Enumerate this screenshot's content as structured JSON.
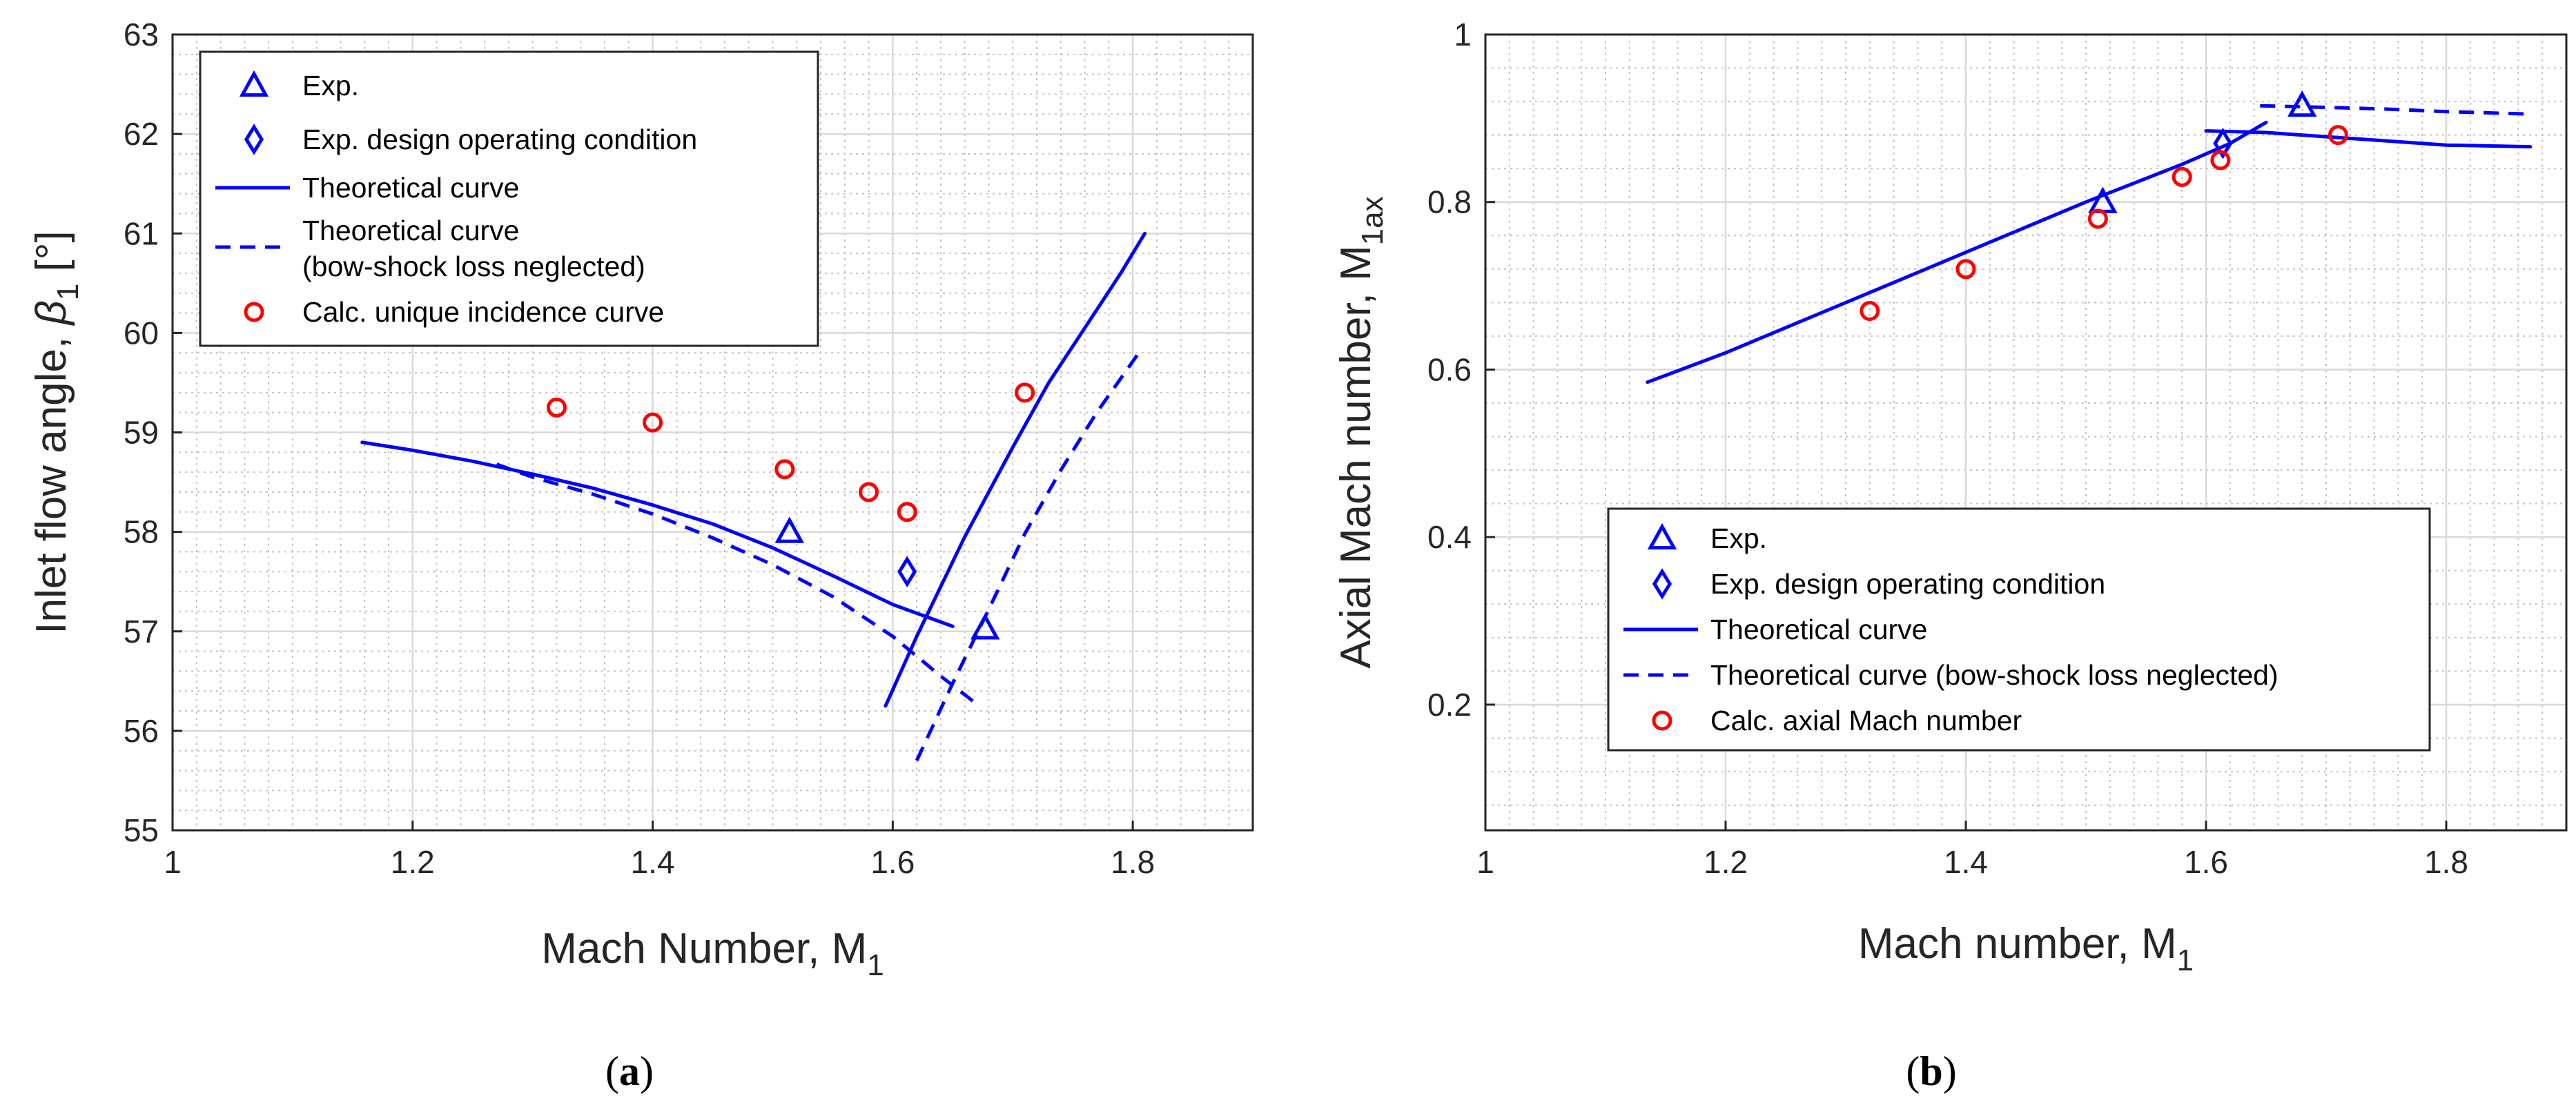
{
  "chart_data": [
    {
      "type": "line",
      "caption_letter": "a",
      "xlabel": "Mach Number, M",
      "xlabel_sub": "1",
      "ylabel": "Inlet flow angle, ",
      "ylabel_symbol": "β",
      "ylabel_sub": "1",
      "ylabel_unit": " [°]",
      "xlim": [
        1,
        1.9
      ],
      "ylim": [
        55,
        63
      ],
      "xticks": [
        1,
        1.2,
        1.4,
        1.6,
        1.8
      ],
      "xtick_labels": [
        "1",
        "1.2",
        "1.4",
        "1.6",
        "1.8"
      ],
      "yticks": [
        55,
        56,
        57,
        58,
        59,
        60,
        61,
        62,
        63
      ],
      "ytick_labels": [
        "55",
        "56",
        "57",
        "58",
        "59",
        "60",
        "61",
        "62",
        "63"
      ],
      "legend_position": "top-left",
      "series": [
        {
          "name": "Exp.",
          "kind": "triangle",
          "color": "#0000ff",
          "x": [
            1.514,
            1.677
          ],
          "y": [
            58.0,
            57.03
          ]
        },
        {
          "name": "Exp. design operating condition",
          "kind": "diamond",
          "color": "#0000ff",
          "x": [
            1.612
          ],
          "y": [
            57.6
          ]
        },
        {
          "name": "Theoretical curve",
          "kind": "solid",
          "color": "#0000ff",
          "segments": [
            {
              "x": [
                1.158,
                1.2,
                1.25,
                1.3,
                1.35,
                1.4,
                1.45,
                1.5,
                1.55,
                1.6,
                1.65
              ],
              "y": [
                58.9,
                58.82,
                58.71,
                58.58,
                58.44,
                58.27,
                58.08,
                57.84,
                57.56,
                57.27,
                57.05
              ]
            },
            {
              "x": [
                1.594,
                1.62,
                1.66,
                1.7,
                1.73,
                1.76,
                1.79,
                1.81
              ],
              "y": [
                56.25,
                56.95,
                57.95,
                58.85,
                59.5,
                60.05,
                60.6,
                61.0
              ]
            }
          ]
        },
        {
          "name": "Theoretical curve",
          "name_line2": "(bow-shock loss neglected)",
          "kind": "dashed",
          "color": "#0000ff",
          "segments": [
            {
              "x": [
                1.27,
                1.3,
                1.35,
                1.4,
                1.45,
                1.5,
                1.55,
                1.6,
                1.64,
                1.672
              ],
              "y": [
                58.68,
                58.55,
                58.38,
                58.18,
                57.94,
                57.67,
                57.35,
                56.95,
                56.55,
                56.25
              ]
            },
            {
              "x": [
                1.62,
                1.65,
                1.68,
                1.71,
                1.74,
                1.77,
                1.808
              ],
              "y": [
                55.7,
                56.48,
                57.22,
                57.98,
                58.62,
                59.2,
                59.85
              ]
            }
          ]
        },
        {
          "name": "Calc. unique incidence curve",
          "kind": "circle",
          "color": "#ff0000",
          "x": [
            1.32,
            1.4,
            1.51,
            1.58,
            1.612,
            1.71
          ],
          "y": [
            59.25,
            59.1,
            58.63,
            58.4,
            58.2,
            59.4
          ]
        }
      ]
    },
    {
      "type": "line",
      "caption_letter": "b",
      "xlabel": "Mach number, M",
      "xlabel_sub": "1",
      "ylabel": "Axial Mach number, M",
      "ylabel_sub": "1ax",
      "xlim": [
        1,
        1.9
      ],
      "ylim": [
        0.05,
        1.0
      ],
      "xticks": [
        1,
        1.2,
        1.4,
        1.6,
        1.8
      ],
      "xtick_labels": [
        "1",
        "1.2",
        "1.4",
        "1.6",
        "1.8"
      ],
      "yticks": [
        0.2,
        0.4,
        0.6,
        0.8,
        1.0
      ],
      "ytick_labels": [
        "0.2",
        "0.4",
        "0.6",
        "0.8",
        "1"
      ],
      "legend_position": "lower-center",
      "series": [
        {
          "name": "Exp.",
          "kind": "triangle",
          "color": "#0000ff",
          "x": [
            1.514,
            1.68
          ],
          "y": [
            0.8,
            0.915
          ]
        },
        {
          "name": "Exp. design operating condition",
          "kind": "diamond",
          "color": "#0000ff",
          "x": [
            1.614
          ],
          "y": [
            0.87
          ]
        },
        {
          "name": "Theoretical curve",
          "kind": "solid",
          "color": "#0000ff",
          "segments": [
            {
              "x": [
                1.135,
                1.2,
                1.3,
                1.4,
                1.5,
                1.58,
                1.62,
                1.65
              ],
              "y": [
                0.585,
                0.62,
                0.68,
                0.74,
                0.8,
                0.845,
                0.87,
                0.895
              ]
            },
            {
              "x": [
                1.6,
                1.65,
                1.7,
                1.75,
                1.8,
                1.87
              ],
              "y": [
                0.885,
                0.883,
                0.878,
                0.873,
                0.868,
                0.866
              ]
            }
          ]
        },
        {
          "name": "Theoretical curve (bow-shock loss neglected)",
          "kind": "dashed",
          "color": "#0000ff",
          "segments": [
            {
              "x": [
                1.645,
                1.7,
                1.75,
                1.8,
                1.87
              ],
              "y": [
                0.915,
                0.913,
                0.911,
                0.908,
                0.905
              ]
            }
          ]
        },
        {
          "name": "Calc. axial Mach number",
          "kind": "circle",
          "color": "#ff0000",
          "x": [
            1.32,
            1.4,
            1.51,
            1.58,
            1.612,
            1.71
          ],
          "y": [
            0.67,
            0.72,
            0.78,
            0.83,
            0.85,
            0.88
          ]
        }
      ]
    }
  ]
}
